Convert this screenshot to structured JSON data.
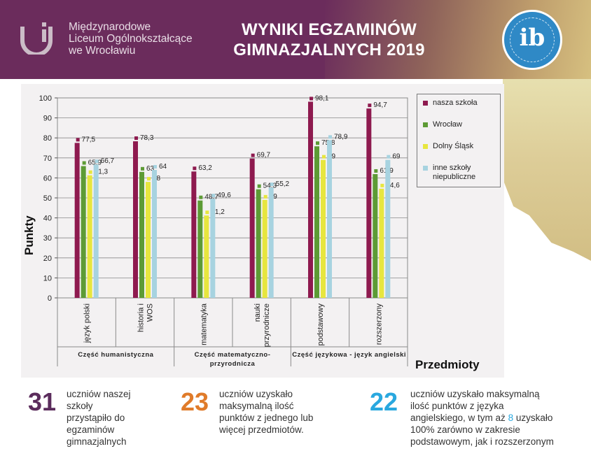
{
  "header": {
    "school_name_lines": [
      "Międzynarodowe",
      "Liceum Ogólnokształcące",
      "we Wrocławiu"
    ],
    "title_line1": "WYNIKI EGZAMINÓW",
    "title_line2": "GIMNAZJALNYCH 2019",
    "badge_text": "ib",
    "badge_icon": "ib-world-school-badge-icon",
    "logo_icon": "school-logo-icon"
  },
  "colors": {
    "banner": "#6b2c5c",
    "nasza": "#8e1a4f",
    "wroclaw": "#5d9b35",
    "dolny": "#e7e63e",
    "inne": "#a7d3e0",
    "stat1": "#5b2c5c",
    "stat2": "#e07b2a",
    "stat3": "#29a8df"
  },
  "chart_data": {
    "type": "bar",
    "ylabel": "Punkty",
    "xlabel": "Przedmioty",
    "ylim": [
      0,
      100
    ],
    "yticks": [
      0,
      10,
      20,
      30,
      40,
      50,
      60,
      70,
      80,
      90,
      100
    ],
    "grid": true,
    "legend_position": "right",
    "categories": [
      "język polski",
      "historia i WOS",
      "matematyka",
      "nauki przyrodnicze",
      "podstawowy",
      "rozszerzony"
    ],
    "category_label_lines": [
      [
        "język polski"
      ],
      [
        "historia i",
        "WOS"
      ],
      [
        "matematyka"
      ],
      [
        "nauki",
        "przyrodnicze"
      ],
      [
        "podstawowy"
      ],
      [
        "rozszerzony"
      ]
    ],
    "groups": [
      {
        "label": "Część humanistyczna",
        "label_lines": [
          "Część humanistyczna"
        ],
        "categories": [
          0,
          1
        ]
      },
      {
        "label": "Część matematyczno-przyrodnicza",
        "label_lines": [
          "Część matematyczno-",
          "przyrodnicza"
        ],
        "categories": [
          2,
          3
        ]
      },
      {
        "label": "Część językowa - język angielski",
        "label_lines": [
          "Część językowa - język angielski"
        ],
        "categories": [
          4,
          5
        ]
      }
    ],
    "series": [
      {
        "name": "nasza szkoła",
        "values": [
          77.5,
          78.3,
          63.2,
          69.7,
          98.1,
          94.7
        ]
      },
      {
        "name": "Wrocław",
        "values": [
          65.9,
          63,
          48.7,
          54.3,
          75.8,
          61.9
        ]
      },
      {
        "name": "Dolny Śląsk",
        "values": [
          61.3,
          58,
          41.2,
          49,
          69,
          54.6
        ]
      },
      {
        "name": "inne szkoły niepubliczne",
        "values": [
          66.7,
          64,
          49.6,
          55.2,
          78.9,
          69
        ]
      }
    ],
    "data_labels": [
      [
        "77,5",
        "78,3",
        "63,2",
        "69,7",
        "98,1",
        "94,7"
      ],
      [
        "65,9",
        "63",
        "48,7",
        "54,3",
        "75,8",
        "61,9"
      ],
      [
        "61,3",
        "58",
        "41,2",
        "49",
        "69",
        "54,6"
      ],
      [
        "66,7",
        "64",
        "49,6",
        "55,2",
        "78,9",
        "69"
      ]
    ]
  },
  "legend": {
    "items": [
      {
        "lines": [
          "nasza szkoła"
        ]
      },
      {
        "lines": [
          "Wrocław"
        ]
      },
      {
        "lines": [
          "Dolny Śląsk"
        ]
      },
      {
        "lines": [
          "inne szkoły",
          "niepubliczne"
        ]
      }
    ]
  },
  "stats": [
    {
      "number": "31",
      "text_lines": [
        "uczniów naszej",
        "szkoły",
        "przystąpiło do",
        "egzaminów",
        "gimnazjalnych"
      ]
    },
    {
      "number": "23",
      "text_lines": [
        "uczniów uzyskało",
        "maksymalną ilość",
        "punktów z jednego lub",
        "więcej przedmiotów."
      ]
    },
    {
      "number": "22",
      "text_lines": [
        "uczniów uzyskało maksymalną",
        "ilość punktów z języka",
        "angielskiego, w tym aż ",
        "100% zarówno w zakresie",
        "podstawowym, jak i rozszerzonym"
      ],
      "line3_highlight": "8",
      "line3_tail": " uzyskało"
    }
  ]
}
